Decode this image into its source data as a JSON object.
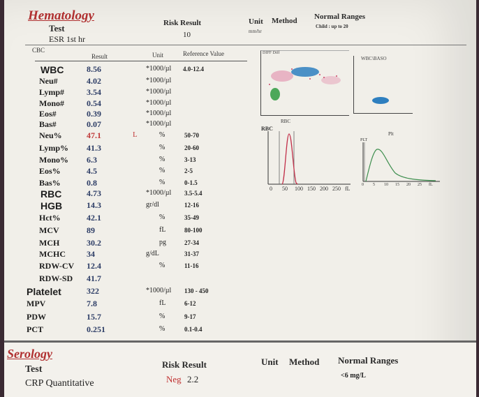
{
  "hematology": {
    "title": "Hematology",
    "col_test": "Test",
    "col_risk": "Risk Result",
    "col_unit": "Unit",
    "col_method": "Method",
    "col_normal": "Normal Ranges",
    "esr_test": "ESR 1st hr",
    "esr_result": "10",
    "esr_unit": "mm/hr",
    "esr_range": "Child : up to 20",
    "cbc_label": "CBC",
    "sub_result": "Result",
    "sub_unit": "Unit",
    "sub_ref": "Reference Value",
    "rows": [
      {
        "name": "WBC",
        "result": "8.56",
        "flag": "",
        "unit": "*1000/µl",
        "ref": "4.0-12.4"
      },
      {
        "name": "Neu#",
        "result": "4.02",
        "flag": "",
        "unit": "*1000/µl",
        "ref": ""
      },
      {
        "name": "Lymp#",
        "result": "3.54",
        "flag": "",
        "unit": "*1000/µl",
        "ref": ""
      },
      {
        "name": "Mono#",
        "result": "0.54",
        "flag": "",
        "unit": "*1000/µl",
        "ref": ""
      },
      {
        "name": "Eos#",
        "result": "0.39",
        "flag": "",
        "unit": "*1000/µl",
        "ref": ""
      },
      {
        "name": "Bas#",
        "result": "0.07",
        "flag": "",
        "unit": "*1000/µl",
        "ref": ""
      },
      {
        "name": "Neu%",
        "result": "47.1",
        "flag": "L",
        "unit": "%",
        "ref": "50-70"
      },
      {
        "name": "Lymp%",
        "result": "41.3",
        "flag": "",
        "unit": "%",
        "ref": "20-60"
      },
      {
        "name": "Mono%",
        "result": "6.3",
        "flag": "",
        "unit": "%",
        "ref": "3-13"
      },
      {
        "name": "Eos%",
        "result": "4.5",
        "flag": "",
        "unit": "%",
        "ref": "2-5"
      },
      {
        "name": "Bas%",
        "result": "0.8",
        "flag": "",
        "unit": "%",
        "ref": "0-1.5"
      },
      {
        "name": "RBC",
        "result": "4.73",
        "flag": "",
        "unit": "*1000/µl",
        "ref": "3.5-5.4"
      },
      {
        "name": "HGB",
        "result": "14.3",
        "flag": "",
        "unit": "gr/dl",
        "ref": "12-16"
      },
      {
        "name": "Hct%",
        "result": "42.1",
        "flag": "",
        "unit": "%",
        "ref": "35-49"
      },
      {
        "name": "MCV",
        "result": "89",
        "flag": "",
        "unit": "fL",
        "ref": "80-100"
      },
      {
        "name": "MCH",
        "result": "30.2",
        "flag": "",
        "unit": "pg",
        "ref": "27-34"
      },
      {
        "name": "MCHC",
        "result": "34",
        "flag": "",
        "unit": "g/dL",
        "ref": "31-37"
      },
      {
        "name": "RDW-CV",
        "result": "12.4",
        "flag": "",
        "unit": "%",
        "ref": "11-16"
      },
      {
        "name": "RDW-SD",
        "result": "41.7",
        "flag": "",
        "unit": "",
        "ref": ""
      },
      {
        "name": "Platelet",
        "result": "322",
        "flag": "",
        "unit": "*1000/µl",
        "ref": "130 - 450"
      },
      {
        "name": "MPV",
        "result": "7.8",
        "flag": "",
        "unit": "fL",
        "ref": "6-12"
      },
      {
        "name": "PDW",
        "result": "15.7",
        "flag": "",
        "unit": "%",
        "ref": "9-17"
      },
      {
        "name": "PCT",
        "result": "0.251",
        "flag": "",
        "unit": "%",
        "ref": "0.1-0.4"
      }
    ],
    "graphs": {
      "diff_label": "DIFF Diff",
      "baso_label": "WBC\\BASO",
      "rbc_title": "RBC",
      "rbc_side": "RBC",
      "plt_title": "Plt",
      "plt_side": "PLT",
      "rbc_ticks": [
        "0",
        "50",
        "100",
        "150",
        "200",
        "250",
        "fL"
      ],
      "plt_ticks": [
        "0",
        "5",
        "10",
        "15",
        "20",
        "25",
        "fL"
      ],
      "diff_colors": {
        "pink": "#e07aa0",
        "blue": "#2e7fbf",
        "green": "#3aa04a"
      }
    }
  },
  "serology": {
    "title": "Serology",
    "col_test": "Test",
    "col_risk": "Risk Result",
    "col_unit": "Unit",
    "col_method": "Method",
    "col_normal": "Normal Ranges",
    "crp_test": "CRP Quantitative",
    "crp_flag": "Neg",
    "crp_result": "2.2",
    "crp_range": "<6 mg/L"
  }
}
